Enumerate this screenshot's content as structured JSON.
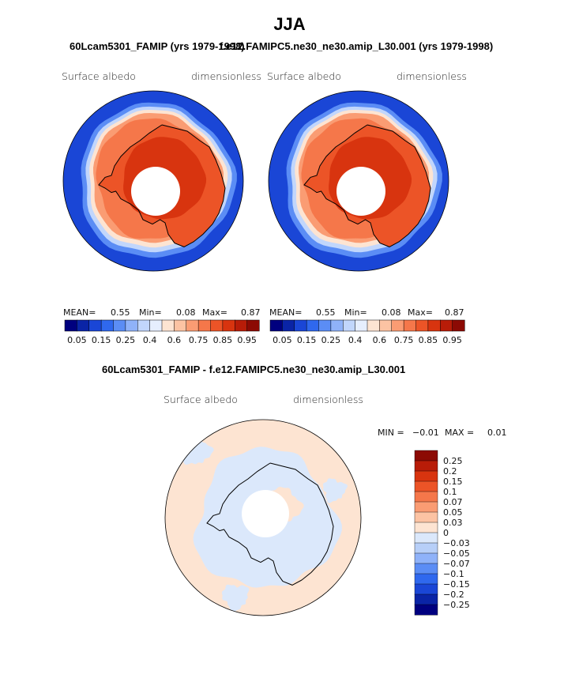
{
  "header": {
    "season": "JJA",
    "left_case": "60Lcam5301_FAMIP (yrs 1979-1998)",
    "right_case": "f.e12.FAMIPC5.ne30_ne30.amip_L30.001 (yrs 1979-1998)",
    "diff_title": "60Lcam5301_FAMIP - f.e12.FAMIPC5.ne30_ne30.amip_L30.001"
  },
  "panels": {
    "left": {
      "variable": "Surface albedo",
      "units": "dimensionless",
      "mean_label": "MEAN=",
      "mean": "0.55",
      "min_label": "Min=",
      "min": "0.08",
      "max_label": "Max=",
      "max": "0.87"
    },
    "right": {
      "variable": "Surface albedo",
      "units": "dimensionless",
      "mean_label": "MEAN=",
      "mean": "0.55",
      "min_label": "Min=",
      "min": "0.08",
      "max_label": "Max=",
      "max": "0.87"
    },
    "diff": {
      "variable": "Surface albedo",
      "units": "dimensionless",
      "min_label": "MIN =",
      "min": "−0.01",
      "max_label": "MAX =",
      "max": "0.01"
    }
  },
  "chart_data": [
    {
      "type": "heatmap",
      "projection": "south-polar-stereographic",
      "title": "60Lcam5301_FAMIP (yrs 1979-1998)",
      "variable": "Surface albedo",
      "units": "dimensionless",
      "stats": {
        "mean": 0.55,
        "min": 0.08,
        "max": 0.87
      },
      "colorbar": {
        "orientation": "horizontal",
        "levels": [
          0.05,
          0.1,
          0.15,
          0.2,
          0.25,
          0.3,
          0.4,
          0.5,
          0.6,
          0.7,
          0.75,
          0.8,
          0.85,
          0.9,
          0.95
        ],
        "tick_labels": [
          "0.05",
          "0.15",
          "0.25",
          "0.4",
          "0.6",
          "0.75",
          "0.85",
          "0.95"
        ],
        "colors": [
          "#00007f",
          "#0a24a6",
          "#1a46d6",
          "#2f68ee",
          "#5b8df5",
          "#8fb2f9",
          "#c1d6fc",
          "#e6eefe",
          "#fde4d2",
          "#fcc3a3",
          "#fa9c73",
          "#f5774a",
          "#ec5427",
          "#d8340f",
          "#b81c08",
          "#8c0a04"
        ]
      },
      "regions": {
        "open_ocean": 0.1,
        "sea_ice_edge": 0.4,
        "sea_ice": 0.75,
        "ice_sheet": 0.85
      }
    },
    {
      "type": "heatmap",
      "projection": "south-polar-stereographic",
      "title": "f.e12.FAMIPC5.ne30_ne30.amip_L30.001 (yrs 1979-1998)",
      "variable": "Surface albedo",
      "units": "dimensionless",
      "stats": {
        "mean": 0.55,
        "min": 0.08,
        "max": 0.87
      },
      "colorbar": {
        "orientation": "horizontal",
        "levels": [
          0.05,
          0.1,
          0.15,
          0.2,
          0.25,
          0.3,
          0.4,
          0.5,
          0.6,
          0.7,
          0.75,
          0.8,
          0.85,
          0.9,
          0.95
        ],
        "tick_labels": [
          "0.05",
          "0.15",
          "0.25",
          "0.4",
          "0.6",
          "0.75",
          "0.85",
          "0.95"
        ],
        "colors": [
          "#00007f",
          "#0a24a6",
          "#1a46d6",
          "#2f68ee",
          "#5b8df5",
          "#8fb2f9",
          "#c1d6fc",
          "#e6eefe",
          "#fde4d2",
          "#fcc3a3",
          "#fa9c73",
          "#f5774a",
          "#ec5427",
          "#d8340f",
          "#b81c08",
          "#8c0a04"
        ]
      },
      "regions": {
        "open_ocean": 0.1,
        "sea_ice_edge": 0.4,
        "sea_ice": 0.75,
        "ice_sheet": 0.85
      }
    },
    {
      "type": "heatmap",
      "projection": "south-polar-stereographic",
      "title": "60Lcam5301_FAMIP - f.e12.FAMIPC5.ne30_ne30.amip_L30.001",
      "variable": "Surface albedo",
      "units": "dimensionless",
      "stats": {
        "min": -0.01,
        "max": 0.01
      },
      "colorbar": {
        "orientation": "vertical",
        "levels": [
          -0.25,
          -0.2,
          -0.15,
          -0.1,
          -0.07,
          -0.05,
          -0.03,
          0,
          0.03,
          0.05,
          0.07,
          0.1,
          0.15,
          0.2,
          0.25
        ],
        "tick_labels": [
          "0.25",
          "0.2",
          "0.15",
          "0.1",
          "0.07",
          "0.05",
          "0.03",
          "0",
          "−0.03",
          "−0.05",
          "−0.07",
          "−0.1",
          "−0.15",
          "−0.2",
          "−0.25"
        ],
        "colors_top_to_bottom": [
          "#8c0a04",
          "#b81c08",
          "#d8340f",
          "#ec5427",
          "#f5774a",
          "#fa9c73",
          "#fcc3a3",
          "#fde4d2",
          "#dbe8fb",
          "#b7cff8",
          "#8fb2f9",
          "#5b8df5",
          "#2f68ee",
          "#1a46d6",
          "#0a24a6",
          "#00007f"
        ]
      },
      "regions": {
        "positive_small": "0 to 0.03",
        "negative_small": "-0.03 to 0"
      }
    }
  ]
}
